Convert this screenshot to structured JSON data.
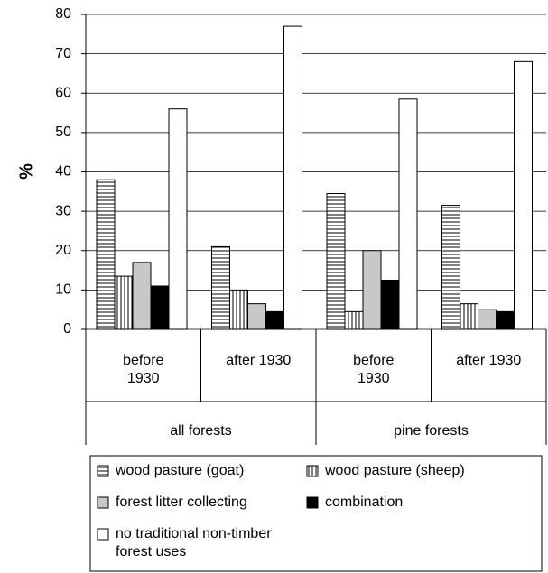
{
  "chart_data": {
    "type": "bar",
    "ylabel": "%",
    "categories": [
      "before 1930",
      "after 1930",
      "before 1930",
      "after 1930"
    ],
    "groups": [
      "all forests",
      "pine forests"
    ],
    "series": [
      {
        "name": "wood pasture (goat)",
        "color": "#ffffff",
        "pattern": "horizontal",
        "values": [
          38,
          21,
          34.5,
          31.5
        ]
      },
      {
        "name": "wood pasture (sheep)",
        "color": "#ffffff",
        "pattern": "vertical",
        "values": [
          13.5,
          10,
          4.5,
          6.5
        ]
      },
      {
        "name": "forest litter collecting",
        "color": "#c8c8c8",
        "values": [
          17,
          6.5,
          20,
          5
        ]
      },
      {
        "name": "combination",
        "color": "#000000",
        "values": [
          11,
          4.5,
          12.5,
          4.5
        ]
      },
      {
        "name": "no traditional non-timber forest uses",
        "color": "#ffffff",
        "values": [
          56,
          77,
          58.5,
          68
        ]
      }
    ],
    "ylim": [
      0,
      80
    ],
    "yticks": [
      0,
      10,
      20,
      30,
      40,
      50,
      60,
      70,
      80
    ],
    "grid": true
  }
}
